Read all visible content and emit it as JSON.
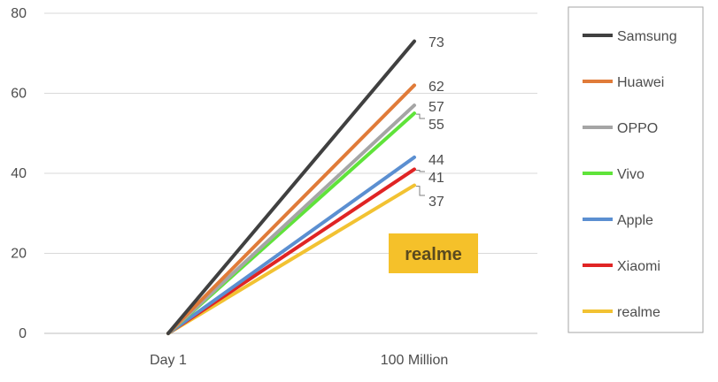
{
  "chart_data": {
    "type": "line",
    "categories": [
      "Day 1",
      "100 Million"
    ],
    "y_ticks": [
      "0",
      "20",
      "40",
      "60",
      "80"
    ],
    "ylim": [
      0,
      80
    ],
    "grid": true,
    "legend_placement": "right",
    "series": [
      {
        "name": "Samsung",
        "values": [
          0,
          73
        ],
        "end_label": "73",
        "color": "#404040"
      },
      {
        "name": "Huawei",
        "values": [
          0,
          62
        ],
        "end_label": "62",
        "color": "#e07b39"
      },
      {
        "name": "OPPO",
        "values": [
          0,
          57
        ],
        "end_label": "57",
        "color": "#a5a5a5"
      },
      {
        "name": "Vivo",
        "values": [
          0,
          55
        ],
        "end_label": "55",
        "color": "#5fe33a"
      },
      {
        "name": "Apple",
        "values": [
          0,
          44
        ],
        "end_label": "44",
        "color": "#5b8fd1"
      },
      {
        "name": "Xiaomi",
        "values": [
          0,
          41
        ],
        "end_label": "41",
        "color": "#e02424"
      },
      {
        "name": "realme",
        "values": [
          0,
          37
        ],
        "end_label": "37",
        "color": "#f2c232"
      }
    ],
    "badge": {
      "text": "realme",
      "color": "#f5c12a"
    }
  }
}
